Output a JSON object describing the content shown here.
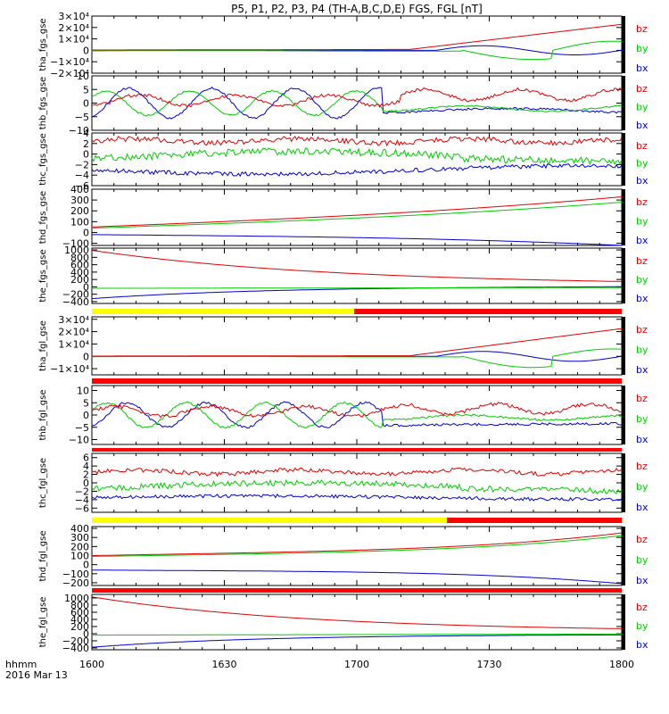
{
  "title": "P5, P1, P2, P3, P4 (TH-A,B,C,D,E) FGS, FGL [nT]",
  "time_axis": {
    "label_line1": "hhmm",
    "label_line2": "2016 Mar 13",
    "ticks": [
      "1600",
      "1630",
      "1700",
      "1730",
      "1800"
    ]
  },
  "chart_data": [
    {
      "type": "line",
      "ylabel": "tha_fgs_gse",
      "yticks": [
        "3×10⁴",
        "2×10⁴",
        "1×10⁴",
        "0",
        "−1×10⁴",
        "−2×10⁴"
      ],
      "ylim": [
        -20000,
        30000
      ],
      "series": [
        {
          "name": "bz",
          "color": "#dd0000"
        },
        {
          "name": "by",
          "color": "#00cc00"
        },
        {
          "name": "bx",
          "color": "#0000cc"
        }
      ]
    },
    {
      "type": "line",
      "ylabel": "thb_fgs_gse",
      "yticks": [
        "10",
        "5",
        "0",
        "−5",
        "−10"
      ],
      "ylim": [
        -10,
        10
      ],
      "series": [
        {
          "name": "bz",
          "color": "#dd0000"
        },
        {
          "name": "by",
          "color": "#00cc00"
        },
        {
          "name": "bx",
          "color": "#0000cc"
        }
      ]
    },
    {
      "type": "line",
      "ylabel": "thc_fgs_gse",
      "yticks": [
        "4",
        "2",
        "0",
        "−2",
        "−4",
        "−6"
      ],
      "ylim": [
        -6,
        4
      ],
      "series": [
        {
          "name": "bz",
          "color": "#dd0000"
        },
        {
          "name": "by",
          "color": "#00cc00"
        },
        {
          "name": "bx",
          "color": "#0000cc"
        }
      ]
    },
    {
      "type": "line",
      "ylabel": "thd_fgs_gse",
      "yticks": [
        "400",
        "300",
        "200",
        "100",
        "0",
        "−100"
      ],
      "ylim": [
        -120,
        400
      ],
      "series": [
        {
          "name": "bz",
          "color": "#dd0000"
        },
        {
          "name": "by",
          "color": "#00cc00"
        },
        {
          "name": "bx",
          "color": "#0000cc"
        }
      ]
    },
    {
      "type": "line",
      "ylabel": "the_fgs_gse",
      "yticks": [
        "1000",
        "800",
        "600",
        "400",
        "200",
        "0",
        "−200",
        "−400"
      ],
      "ylim": [
        -450,
        1050
      ],
      "series": [
        {
          "name": "bz",
          "color": "#dd0000"
        },
        {
          "name": "by",
          "color": "#00cc00"
        },
        {
          "name": "bx",
          "color": "#0000cc"
        }
      ]
    },
    {
      "type": "line",
      "ylabel": "tha_fgl_gse",
      "yticks": [
        "3×10⁴",
        "2×10⁴",
        "1×10⁴",
        "0",
        "−1×10⁴"
      ],
      "ylim": [
        -15000,
        32000
      ],
      "series": [
        {
          "name": "bz",
          "color": "#dd0000"
        },
        {
          "name": "by",
          "color": "#00cc00"
        },
        {
          "name": "bx",
          "color": "#0000cc"
        }
      ]
    },
    {
      "type": "line",
      "ylabel": "thb_fgl_gse",
      "yticks": [
        "10",
        "5",
        "0",
        "−5",
        "−10"
      ],
      "ylim": [
        -12,
        12
      ],
      "series": [
        {
          "name": "bz",
          "color": "#dd0000"
        },
        {
          "name": "by",
          "color": "#00cc00"
        },
        {
          "name": "bx",
          "color": "#0000cc"
        }
      ]
    },
    {
      "type": "line",
      "ylabel": "thc_fgl_gse",
      "yticks": [
        "6",
        "4",
        "2",
        "0",
        "−2",
        "−4",
        "−6"
      ],
      "ylim": [
        -7,
        7
      ],
      "series": [
        {
          "name": "bz",
          "color": "#dd0000"
        },
        {
          "name": "by",
          "color": "#00cc00"
        },
        {
          "name": "bx",
          "color": "#0000cc"
        }
      ]
    },
    {
      "type": "line",
      "ylabel": "thd_fgl_gse",
      "yticks": [
        "400",
        "300",
        "200",
        "100",
        "0",
        "−100",
        "−200"
      ],
      "ylim": [
        -230,
        420
      ],
      "series": [
        {
          "name": "bz",
          "color": "#dd0000"
        },
        {
          "name": "by",
          "color": "#00cc00"
        },
        {
          "name": "bx",
          "color": "#0000cc"
        }
      ]
    },
    {
      "type": "line",
      "ylabel": "the_fgl_gse",
      "yticks": [
        "1000",
        "800",
        "600",
        "400",
        "200",
        "0",
        "−200",
        "−400"
      ],
      "ylim": [
        -450,
        1100
      ],
      "series": [
        {
          "name": "bz",
          "color": "#dd0000"
        },
        {
          "name": "by",
          "color": "#00cc00"
        },
        {
          "name": "bx",
          "color": "#0000cc"
        }
      ]
    }
  ],
  "mode_bars": [
    {
      "after_panel": 4,
      "segments": [
        {
          "start": 0.0,
          "end": 0.495,
          "color": "#ffff00"
        },
        {
          "start": 0.495,
          "end": 1.0,
          "color": "#ff0000"
        }
      ]
    },
    {
      "after_panel": 5,
      "segments": [
        {
          "start": 0.0,
          "end": 1.0,
          "color": "#ff0000"
        }
      ]
    },
    {
      "after_panel": 6,
      "segments": [
        {
          "start": 0.0,
          "end": 1.0,
          "color": "#ff0000"
        }
      ]
    },
    {
      "after_panel": 7,
      "segments": [
        {
          "start": 0.0,
          "end": 0.67,
          "color": "#ffff00"
        },
        {
          "start": 0.67,
          "end": 1.0,
          "color": "#ff0000"
        }
      ]
    },
    {
      "after_panel": 8,
      "segments": [
        {
          "start": 0.0,
          "end": 1.0,
          "color": "#ff0000"
        }
      ]
    }
  ],
  "colors": {
    "bz": "#dd0000",
    "by": "#00cc00",
    "bx": "#0000cc"
  }
}
